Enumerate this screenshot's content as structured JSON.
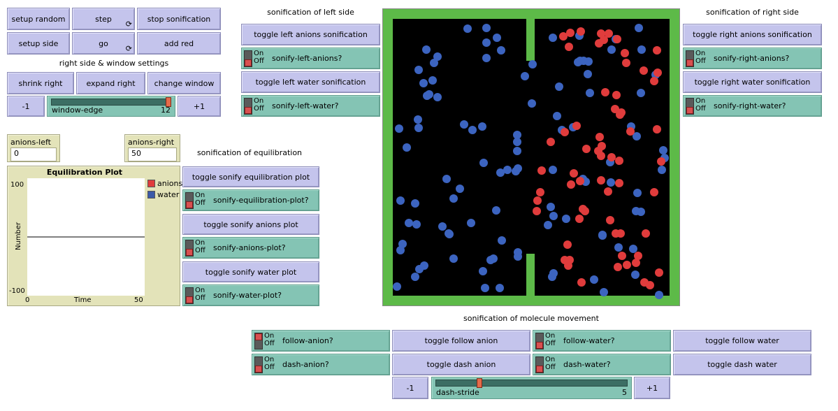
{
  "buttons": {
    "setup_random": "setup random",
    "step": "step",
    "stop_sonification": "stop sonification",
    "setup_side": "setup side",
    "go": "go",
    "add_red": "add red",
    "shrink_right": "shrink right",
    "expand_right": "expand right",
    "change_window": "change window",
    "minus": "-1",
    "plus": "+1",
    "toggle_left_anions": "toggle left anions sonification",
    "toggle_left_water": "toggle left water sonification",
    "toggle_right_anions": "toggle right anions sonification",
    "toggle_right_water": "toggle right water sonification",
    "toggle_equil_plot": "toggle sonify equilibration plot",
    "toggle_anions_plot": "toggle sonify anions plot",
    "toggle_water_plot": "toggle sonify water plot",
    "toggle_follow_anion": "toggle follow anion",
    "toggle_dash_anion": "toggle dash anion",
    "toggle_follow_water": "toggle follow water",
    "toggle_dash_water": "toggle dash water",
    "loop_icon": "forever-loop-icon",
    "loop_glyph": "⟳"
  },
  "titles": {
    "right_settings": "right side & window settings",
    "left_side": "sonification of left side",
    "right_side": "sonification of right side",
    "equilibration": "sonification of equilibration",
    "molecule_movement": "sonification of molecule movement"
  },
  "switch_text": {
    "on": "On",
    "off": "Off"
  },
  "switches": {
    "left_anions": "sonify-left-anions?",
    "left_water": "sonify-left-water?",
    "right_anions": "sonify-right-anions?",
    "right_water": "sonify-right-water?",
    "equil_plot": "sonify-equilibration-plot?",
    "anions_plot": "sonify-anions-plot?",
    "water_plot": "sonify-water-plot?",
    "follow_anion": "follow-anion?",
    "dash_anion": "dash-anion?",
    "follow_water": "follow-water?",
    "dash_water": "dash-water?"
  },
  "sliders": {
    "window_edge": {
      "label": "window-edge",
      "value": "12",
      "min": 0,
      "max": 12,
      "fraction": 1.0
    },
    "dash_stride": {
      "label": "dash-stride",
      "value": "5",
      "fraction": 0.22
    }
  },
  "monitors": {
    "anions_left": {
      "label": "anions-left",
      "value": "0"
    },
    "anions_right": {
      "label": "anions-right",
      "value": "50"
    }
  },
  "plot": {
    "title": "Equilibration Plot",
    "ylabel": "Number",
    "xlabel": "Time",
    "y_max": "100",
    "y_min": "-100",
    "x_min": "0",
    "x_max": "50",
    "legend": [
      {
        "name": "anions",
        "color": "#e03c3c"
      },
      {
        "name": "water",
        "color": "#3c5aa8"
      }
    ]
  },
  "chart_data": {
    "type": "line",
    "title": "Equilibration Plot",
    "xlabel": "Time",
    "ylabel": "Number",
    "xlim": [
      0,
      50
    ],
    "ylim": [
      -100,
      100
    ],
    "series": [
      {
        "name": "anions",
        "color": "#e03c3c",
        "x": [],
        "y": []
      },
      {
        "name": "water",
        "color": "#3c5aa8",
        "x": [],
        "y": []
      }
    ]
  },
  "colors": {
    "wall": "#5dba48",
    "background": "#000000",
    "anion": "#e03c3c",
    "water": "#3c64c0",
    "button": "#c4c4ec",
    "switch": "#84c4b4",
    "monitor": "#e3e3b9"
  }
}
